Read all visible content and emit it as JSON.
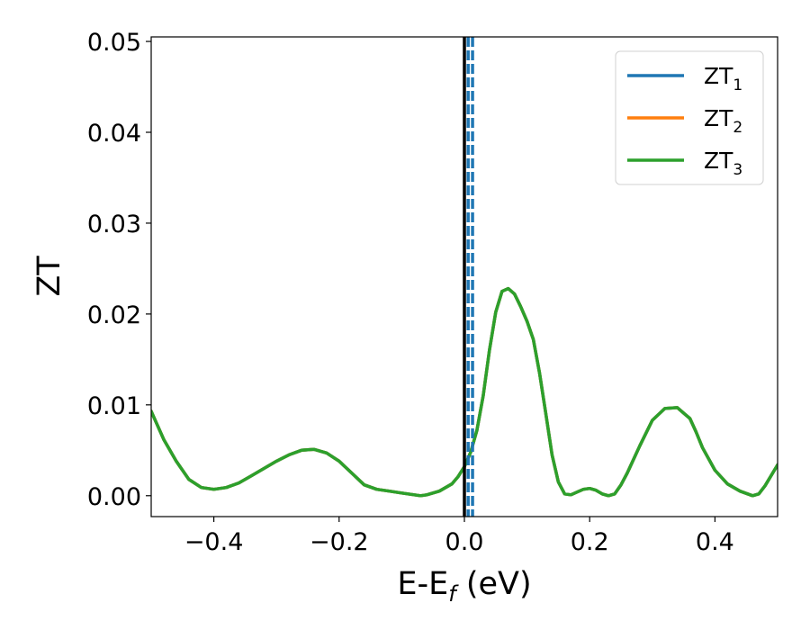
{
  "chart_data": {
    "type": "line",
    "xlabel": "E-E",
    "xlabel_subscript": "f",
    "xlabel_unit": " (eV)",
    "ylabel": "ZT",
    "xlim": [
      -0.5,
      0.5
    ],
    "ylim": [
      -0.0023,
      0.0505
    ],
    "x_ticks": [
      -0.4,
      -0.2,
      0.0,
      0.2,
      0.4
    ],
    "x_tick_labels": [
      "−0.4",
      "−0.2",
      "0.0",
      "0.2",
      "0.4"
    ],
    "y_ticks": [
      0.0,
      0.01,
      0.02,
      0.03,
      0.04,
      0.05
    ],
    "y_tick_labels": [
      "0.00",
      "0.01",
      "0.02",
      "0.03",
      "0.04",
      "0.05"
    ],
    "grid": false,
    "legend_position": "top-right",
    "vertical_lines": [
      {
        "x": 0.0,
        "style": "solid",
        "color": "#000000"
      },
      {
        "x": 0.006,
        "style": "dashed",
        "color": "#1f77b4"
      },
      {
        "x": 0.013,
        "style": "dashed",
        "color": "#1f77b4"
      }
    ],
    "x": [
      -0.5,
      -0.48,
      -0.46,
      -0.44,
      -0.42,
      -0.4,
      -0.38,
      -0.36,
      -0.34,
      -0.32,
      -0.3,
      -0.28,
      -0.26,
      -0.24,
      -0.22,
      -0.2,
      -0.18,
      -0.16,
      -0.14,
      -0.12,
      -0.1,
      -0.08,
      -0.07,
      -0.06,
      -0.04,
      -0.02,
      -0.01,
      0.0,
      0.01,
      0.02,
      0.03,
      0.04,
      0.05,
      0.06,
      0.07,
      0.08,
      0.09,
      0.1,
      0.11,
      0.12,
      0.13,
      0.14,
      0.15,
      0.16,
      0.17,
      0.18,
      0.19,
      0.2,
      0.21,
      0.22,
      0.23,
      0.24,
      0.25,
      0.26,
      0.28,
      0.3,
      0.32,
      0.34,
      0.36,
      0.37,
      0.38,
      0.4,
      0.42,
      0.44,
      0.46,
      0.47,
      0.48,
      0.5
    ],
    "series": [
      {
        "name": "ZT",
        "subscript": "1",
        "color": "#1f77b4",
        "values": [
          0.0093,
          0.0062,
          0.0038,
          0.0018,
          0.0009,
          0.0007,
          0.0009,
          0.0014,
          0.0022,
          0.003,
          0.0038,
          0.0045,
          0.005,
          0.0051,
          0.0047,
          0.0038,
          0.0025,
          0.0012,
          0.0007,
          0.0005,
          0.0003,
          0.0001,
          0.0,
          0.0001,
          0.0005,
          0.0013,
          0.0021,
          0.0032,
          0.0048,
          0.0072,
          0.011,
          0.016,
          0.0202,
          0.0225,
          0.0228,
          0.0222,
          0.0208,
          0.0192,
          0.0172,
          0.0135,
          0.009,
          0.0045,
          0.0015,
          0.0002,
          0.0001,
          0.0004,
          0.0007,
          0.0008,
          0.0006,
          0.0002,
          0.0,
          0.0002,
          0.0012,
          0.0025,
          0.0055,
          0.0083,
          0.0096,
          0.0097,
          0.0085,
          0.007,
          0.0053,
          0.0028,
          0.0013,
          0.0005,
          0.0,
          0.0002,
          0.0011,
          0.0034
        ]
      },
      {
        "name": "ZT",
        "subscript": "2",
        "color": "#ff7f0e",
        "values": [
          0.0093,
          0.0062,
          0.0038,
          0.0018,
          0.0009,
          0.0007,
          0.0009,
          0.0014,
          0.0022,
          0.003,
          0.0038,
          0.0045,
          0.005,
          0.0051,
          0.0047,
          0.0038,
          0.0025,
          0.0012,
          0.0007,
          0.0005,
          0.0003,
          0.0001,
          0.0,
          0.0001,
          0.0005,
          0.0013,
          0.0021,
          0.0032,
          0.0048,
          0.0072,
          0.011,
          0.016,
          0.0202,
          0.0225,
          0.0228,
          0.0222,
          0.0208,
          0.0192,
          0.0172,
          0.0135,
          0.009,
          0.0045,
          0.0015,
          0.0002,
          0.0001,
          0.0004,
          0.0007,
          0.0008,
          0.0006,
          0.0002,
          0.0,
          0.0002,
          0.0012,
          0.0025,
          0.0055,
          0.0083,
          0.0096,
          0.0097,
          0.0085,
          0.007,
          0.0053,
          0.0028,
          0.0013,
          0.0005,
          0.0,
          0.0002,
          0.0011,
          0.0034
        ]
      },
      {
        "name": "ZT",
        "subscript": "3",
        "color": "#2ca02c",
        "values": [
          0.0093,
          0.0062,
          0.0038,
          0.0018,
          0.0009,
          0.0007,
          0.0009,
          0.0014,
          0.0022,
          0.003,
          0.0038,
          0.0045,
          0.005,
          0.0051,
          0.0047,
          0.0038,
          0.0025,
          0.0012,
          0.0007,
          0.0005,
          0.0003,
          0.0001,
          0.0,
          0.0001,
          0.0005,
          0.0013,
          0.0021,
          0.0032,
          0.0048,
          0.0072,
          0.011,
          0.016,
          0.0202,
          0.0225,
          0.0228,
          0.0222,
          0.0208,
          0.0192,
          0.0172,
          0.0135,
          0.009,
          0.0045,
          0.0015,
          0.0002,
          0.0001,
          0.0004,
          0.0007,
          0.0008,
          0.0006,
          0.0002,
          0.0,
          0.0002,
          0.0012,
          0.0025,
          0.0055,
          0.0083,
          0.0096,
          0.0097,
          0.0085,
          0.007,
          0.0053,
          0.0028,
          0.0013,
          0.0005,
          0.0,
          0.0002,
          0.0011,
          0.0034
        ]
      }
    ]
  }
}
